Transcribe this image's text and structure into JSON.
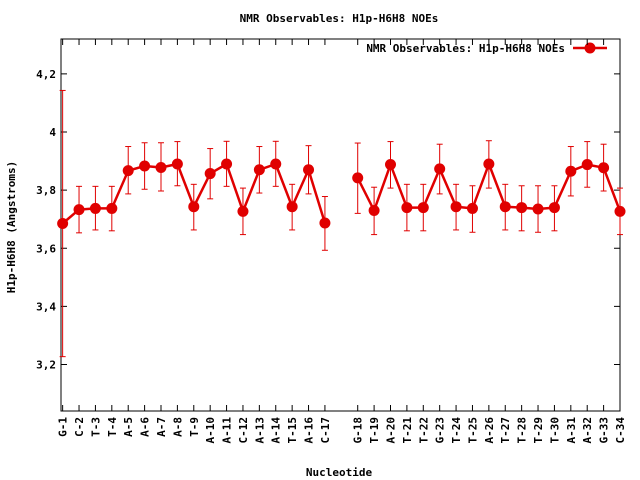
{
  "chart_data": {
    "type": "line",
    "title": "NMR Observables: H1p-H6H8 NOEs",
    "xlabel": "Nucleotide",
    "ylabel": "H1p-H6H8 (Angstroms)",
    "ylim": [
      3.04,
      4.32
    ],
    "yticks": [
      3.2,
      3.4,
      3.6,
      3.8,
      4,
      4.2
    ],
    "ytick_labels": [
      "3,2",
      "3,4",
      "3,6",
      "3,8",
      "4",
      "4,2"
    ],
    "grid": false,
    "legend_position": "top-right",
    "colors": {
      "series": "#e00000",
      "frame": "#000000",
      "background": "#ffffff"
    },
    "categories": [
      "G-1",
      "C-2",
      "T-3",
      "T-4",
      "A-5",
      "A-6",
      "A-7",
      "A-8",
      "T-9",
      "A-10",
      "A-11",
      "C-12",
      "A-13",
      "A-14",
      "T-15",
      "A-16",
      "C-17",
      "G-18",
      "T-19",
      "A-20",
      "T-21",
      "T-22",
      "G-23",
      "T-24",
      "T-25",
      "A-26",
      "T-27",
      "T-28",
      "T-29",
      "T-30",
      "A-31",
      "A-32",
      "G-33",
      "C-34"
    ],
    "x": [
      1,
      2,
      3,
      4,
      5,
      6,
      7,
      8,
      9,
      10,
      11,
      12,
      13,
      14,
      15,
      16,
      17,
      19,
      20,
      21,
      22,
      23,
      24,
      25,
      26,
      27,
      28,
      29,
      30,
      31,
      32,
      33,
      34,
      35
    ],
    "series": [
      {
        "name": "NMR Observables: H1p-H6H8 NOEs",
        "segments": [
          [
            0,
            16
          ],
          [
            17,
            33
          ]
        ],
        "values": [
          3.685,
          3.733,
          3.737,
          3.737,
          3.867,
          3.883,
          3.878,
          3.89,
          3.743,
          3.857,
          3.89,
          3.727,
          3.87,
          3.89,
          3.743,
          3.87,
          3.687,
          3.842,
          3.73,
          3.888,
          3.74,
          3.74,
          3.873,
          3.743,
          3.737,
          3.89,
          3.743,
          3.74,
          3.735,
          3.74,
          3.865,
          3.888,
          3.877,
          3.727
        ],
        "err_low": [
          3.227,
          3.653,
          3.663,
          3.66,
          3.787,
          3.803,
          3.797,
          3.815,
          3.663,
          3.77,
          3.813,
          3.647,
          3.79,
          3.813,
          3.663,
          3.787,
          3.593,
          3.72,
          3.647,
          3.807,
          3.66,
          3.66,
          3.787,
          3.663,
          3.655,
          3.807,
          3.663,
          3.66,
          3.655,
          3.66,
          3.78,
          3.81,
          3.797,
          3.647
        ],
        "err_high": [
          4.143,
          3.813,
          3.813,
          3.813,
          3.95,
          3.963,
          3.963,
          3.967,
          3.82,
          3.943,
          3.968,
          3.807,
          3.95,
          3.968,
          3.82,
          3.953,
          3.778,
          3.962,
          3.81,
          3.967,
          3.82,
          3.82,
          3.958,
          3.82,
          3.815,
          3.97,
          3.82,
          3.815,
          3.815,
          3.815,
          3.95,
          3.967,
          3.958,
          3.807
        ]
      }
    ]
  }
}
